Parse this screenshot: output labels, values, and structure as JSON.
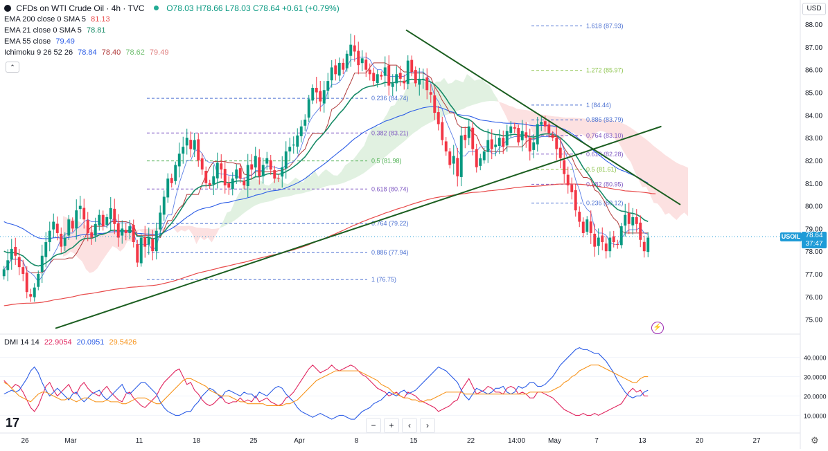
{
  "header": {
    "symbol": "CFDs on WTI Crude Oil · 4h · TVC",
    "ohlc": "O78.03 H78.66 L78.03 C78.64 +0.61 (+0.79%)"
  },
  "indicators": [
    {
      "label": "EMA 200 close 0 SMA 5",
      "value": "81.13",
      "color": "#e84a4a"
    },
    {
      "label": "EMA 21 close 0 SMA 5",
      "value": "78.81",
      "color": "#178a66"
    },
    {
      "label": "EMA 55 close",
      "value": "79.49",
      "color": "#2b5ce6"
    },
    {
      "label": "Ichimoku 9 26 52 26",
      "values": [
        "78.84",
        "78.40",
        "78.62",
        "79.49"
      ],
      "colors": [
        "#2b5ce6",
        "#b03a3a",
        "#6fbf6f",
        "#e08080"
      ]
    }
  ],
  "collapse_label": "⌃",
  "currency": "USD",
  "last_price": {
    "symbol": "USOIL",
    "price": "78.64",
    "countdown": "37:47"
  },
  "price_axis": {
    "min": 74.5,
    "max": 88.4,
    "ticks": [
      "88.00",
      "87.00",
      "86.00",
      "85.00",
      "84.00",
      "83.00",
      "82.00",
      "81.00",
      "80.00",
      "79.00",
      "78.00",
      "77.00",
      "76.00",
      "75.00"
    ]
  },
  "dmi": {
    "label": "DMI 14 14",
    "values": [
      "22.9054",
      "20.0951",
      "29.5426"
    ],
    "colors": [
      "#e0245e",
      "#2b5ce6",
      "#f7931a"
    ],
    "axis_ticks": [
      "40.0000",
      "30.0000",
      "20.0000",
      "10.0000"
    ]
  },
  "time_axis": [
    {
      "label": "26",
      "bar": 6
    },
    {
      "label": "Mar",
      "bar": 18
    },
    {
      "label": "11",
      "bar": 36
    },
    {
      "label": "18",
      "bar": 51
    },
    {
      "label": "25",
      "bar": 66
    },
    {
      "label": "Apr",
      "bar": 78
    },
    {
      "label": "8",
      "bar": 93
    },
    {
      "label": "15",
      "bar": 108
    },
    {
      "label": "22",
      "bar": 123
    },
    {
      "label": "14:00",
      "bar": 135
    },
    {
      "label": "May",
      "bar": 145
    },
    {
      "label": "7",
      "bar": 156
    },
    {
      "label": "13",
      "bar": 168
    },
    {
      "label": "20",
      "bar": 183
    },
    {
      "label": "27",
      "bar": 198
    }
  ],
  "fib_set_1": {
    "color": "#4a6fd1",
    "levels": [
      {
        "label": "0.236 (84.74)",
        "price": 84.74
      },
      {
        "label": "0.382 (83.21)",
        "price": 83.21
      },
      {
        "label": "0.5 (81.98)",
        "price": 81.98
      },
      {
        "label": "0.618 (80.74)",
        "price": 80.74
      },
      {
        "label": "0.764 (79.22)",
        "price": 79.22
      },
      {
        "label": "0.886 (77.94)",
        "price": 77.94
      },
      {
        "label": "1 (76.75)",
        "price": 76.75
      }
    ]
  },
  "fib_set_2": {
    "levels": [
      {
        "label": "1.618 (87.93)",
        "price": 87.93
      },
      {
        "label": "1.272 (85.97)",
        "price": 85.97
      },
      {
        "label": "1 (84.44)",
        "price": 84.44
      },
      {
        "label": "0.886 (83.79)",
        "price": 83.79
      },
      {
        "label": "0.764 (83.10)",
        "price": 83.1
      },
      {
        "label": "0.618 (82.28)",
        "price": 82.28
      },
      {
        "label": "0.5 (81.61)",
        "price": 81.61
      },
      {
        "label": "0.382 (80.95)",
        "price": 80.95
      },
      {
        "label": "0.236 (80.12)",
        "price": 80.12
      }
    ]
  },
  "trendlines": [
    {
      "name": "resistance",
      "from": {
        "bar": 106,
        "price": 87.75
      },
      "to": {
        "bar": 178,
        "price": 80.05
      }
    },
    {
      "name": "support",
      "from": {
        "bar": 14,
        "price": 74.6
      },
      "to": {
        "bar": 173,
        "price": 83.5
      }
    }
  ],
  "chart_data": {
    "type": "candlestick",
    "title": "CFDs on WTI Crude Oil · 4h · TVC",
    "ylabel": "USD",
    "ylim": [
      74.5,
      88.4
    ],
    "close": [
      77.2,
      77.6,
      78.1,
      77.8,
      77.3,
      77.0,
      76.2,
      76.0,
      76.4,
      77.0,
      77.8,
      78.4,
      78.9,
      79.3,
      78.8,
      78.2,
      78.6,
      79.4,
      79.0,
      79.8,
      80.0,
      79.4,
      78.8,
      78.6,
      79.2,
      79.6,
      79.1,
      79.5,
      79.9,
      79.2,
      78.6,
      79.0,
      78.8,
      79.1,
      78.4,
      77.5,
      78.6,
      78.2,
      78.6,
      78.0,
      78.9,
      79.7,
      80.4,
      81.2,
      81.0,
      81.8,
      82.3,
      82.6,
      83.0,
      82.5,
      82.9,
      82.0,
      81.6,
      81.0,
      80.9,
      81.3,
      81.9,
      81.6,
      80.9,
      80.8,
      81.2,
      81.6,
      81.2,
      80.9,
      81.8,
      81.6,
      82.2,
      81.3,
      81.8,
      82.1,
      81.6,
      81.2,
      81.2,
      81.7,
      82.4,
      82.6,
      82.7,
      83.1,
      83.5,
      83.8,
      84.7,
      85.2,
      85.0,
      84.6,
      85.1,
      85.5,
      86.1,
      85.8,
      86.3,
      86.0,
      86.7,
      87.1,
      86.8,
      86.2,
      86.5,
      86.0,
      85.8,
      85.5,
      85.8,
      85.7,
      86.1,
      85.3,
      85.4,
      85.8,
      85.6,
      85.4,
      86.4,
      85.9,
      85.4,
      85.6,
      85.6,
      85.1,
      84.9,
      84.1,
      83.6,
      82.9,
      82.4,
      81.8,
      82.2,
      81.3,
      83.1,
      82.9,
      83.5,
      82.5,
      81.7,
      82.1,
      82.4,
      82.9,
      82.5,
      82.7,
      83.0,
      82.6,
      83.3,
      83.5,
      83.4,
      82.8,
      83.3,
      83.0,
      82.4,
      82.8,
      83.6,
      83.7,
      83.5,
      83.2,
      83.0,
      82.5,
      82.1,
      81.4,
      80.9,
      80.6,
      79.8,
      79.3,
      78.8,
      79.4,
      78.8,
      78.2,
      78.6,
      78.4,
      78.0,
      78.6,
      78.4,
      78.3,
      79.1,
      79.6,
      79.2,
      79.5,
      79.2,
      78.5,
      78.0,
      78.6
    ],
    "ema21": [
      78.0,
      77.93,
      77.94,
      77.93,
      77.87,
      77.79,
      77.64,
      77.49,
      77.39,
      77.35,
      77.39,
      77.48,
      77.61,
      77.76,
      77.86,
      77.89,
      77.95,
      78.08,
      78.16,
      78.31,
      78.47,
      78.55,
      78.57,
      78.57,
      78.63,
      78.72,
      78.75,
      78.81,
      78.91,
      78.93,
      78.9,
      78.91,
      78.9,
      78.92,
      78.873,
      78.66,
      78.65,
      78.609,
      78.61,
      78.55,
      78.58,
      78.69,
      78.85,
      79.06,
      79.24,
      79.47,
      79.73,
      79.99,
      80.26,
      80.46,
      80.68,
      80.8,
      80.88,
      80.89,
      80.89,
      80.93,
      81.02,
      81.07,
      81.05,
      81.02,
      81.04,
      81.09,
      81.1,
      81.08,
      81.14,
      81.19,
      81.28,
      81.28,
      81.33,
      81.4,
      81.43,
      81.41,
      81.39,
      81.42,
      81.51,
      81.6,
      81.72,
      81.85,
      82.0,
      82.16,
      82.39,
      82.64,
      82.87,
      83.03,
      83.22,
      83.42,
      83.66,
      83.85,
      84.07,
      84.24,
      84.46,
      84.7,
      84.89,
      85.0,
      85.14,
      85.22,
      85.27,
      85.29,
      85.34,
      85.37,
      85.44,
      85.42,
      85.42,
      85.46,
      85.47,
      85.46,
      85.55,
      85.58,
      85.56,
      85.56,
      85.56,
      85.52,
      85.46,
      85.34,
      85.18,
      84.97,
      84.735,
      84.47,
      84.26,
      83.99,
      83.91,
      83.84,
      83.81,
      83.69,
      83.51,
      83.38,
      83.29,
      83.25,
      83.18,
      83.14,
      83.13,
      83.08,
      83.1,
      83.13,
      83.15,
      83.12,
      83.12,
      83.11,
      83.05,
      83.03,
      83.08,
      83.14,
      83.17,
      83.17,
      83.15,
      83.09,
      83.0,
      82.85,
      82.68,
      82.49,
      82.24,
      81.97,
      81.68,
      81.47,
      81.23,
      80.96,
      80.74,
      80.53,
      80.3,
      80.15,
      79.99,
      79.84,
      79.77,
      79.75,
      79.69,
      79.67,
      79.62,
      79.52,
      79.38,
      79.31
    ],
    "ema55": [
      79.3,
      79.23,
      79.19,
      79.14,
      79.07,
      78.99,
      78.88,
      78.77,
      78.67,
      78.59,
      78.56,
      78.55,
      78.56,
      78.59,
      78.6,
      78.58,
      78.58,
      78.61,
      78.63,
      78.67,
      78.71,
      78.73,
      78.73,
      78.73,
      78.75,
      78.78,
      78.79,
      78.81,
      78.85,
      78.86,
      78.86,
      78.86,
      78.86,
      78.87,
      78.85,
      78.79,
      78.78,
      78.76,
      78.76,
      78.73,
      78.74,
      78.77,
      78.83,
      78.92,
      79.0,
      79.11,
      79.23,
      79.37,
      79.5,
      79.61,
      79.73,
      79.81,
      79.87,
      79.91,
      79.94,
      79.99,
      80.06,
      80.11,
      80.14,
      80.16,
      80.2,
      80.25,
      80.28,
      80.31,
      80.36,
      80.4,
      80.47,
      80.5,
      80.55,
      80.61,
      80.65,
      80.67,
      80.69,
      80.73,
      80.79,
      80.86,
      80.93,
      81.01,
      81.1,
      81.2,
      81.33,
      81.47,
      81.6,
      81.72,
      81.84,
      81.97,
      82.12,
      82.25,
      82.39,
      82.52,
      82.66,
      82.82,
      82.96,
      83.07,
      83.2,
      83.3,
      83.39,
      83.47,
      83.56,
      83.64,
      83.73,
      83.78,
      83.84,
      83.91,
      83.97,
      84.02,
      84.11,
      84.17,
      84.22,
      84.27,
      84.32,
      84.35,
      84.37,
      84.37,
      84.35,
      84.3,
      84.24,
      84.16,
      84.12,
      84.03,
      84.0,
      83.98,
      83.96,
      83.91,
      83.84,
      83.79,
      83.76,
      83.74,
      83.71,
      83.69,
      83.68,
      83.65,
      83.64,
      83.64,
      83.64,
      83.62,
      83.61,
      83.59,
      83.55,
      83.53,
      83.53,
      83.54,
      83.54,
      83.53,
      83.52,
      83.48,
      83.44,
      83.37,
      83.29,
      83.19,
      83.07,
      82.94,
      82.8,
      82.68,
      82.54,
      82.39,
      82.26,
      82.13,
      81.99,
      81.88,
      81.76,
      81.65,
      81.57,
      81.51,
      81.43,
      81.36,
      81.29,
      81.2,
      81.09,
      81.01
    ],
    "ema200": [
      75.6,
      75.62,
      75.65,
      75.67,
      75.69,
      75.7,
      75.71,
      75.71,
      75.72,
      75.73,
      75.75,
      75.78,
      75.81,
      75.85,
      75.88,
      75.9,
      75.93,
      75.96,
      75.99,
      76.03,
      76.07,
      76.1,
      76.12,
      76.14,
      76.17,
      76.2,
      76.23,
      76.26,
      76.29,
      76.32,
      76.34,
      76.36,
      76.38,
      76.41,
      76.42,
      76.43,
      76.45,
      76.46,
      76.48,
      76.49,
      76.51,
      76.54,
      76.58,
      76.62,
      76.66,
      76.71,
      76.76,
      76.82,
      76.88,
      76.93,
      76.99,
      77.04,
      77.08,
      77.12,
      77.16,
      77.2,
      77.24,
      77.29,
      77.32,
      77.36,
      77.4,
      77.44,
      77.48,
      77.51,
      77.56,
      77.6,
      77.65,
      77.69,
      77.73,
      77.77,
      77.81,
      77.85,
      77.88,
      77.92,
      77.97,
      78.02,
      78.06,
      78.12,
      78.17,
      78.23,
      78.29,
      78.36,
      78.43,
      78.49,
      78.56,
      78.63,
      78.7,
      78.77,
      78.85,
      78.92,
      79.0,
      79.08,
      79.15,
      79.22,
      79.3,
      79.36,
      79.43,
      79.49,
      79.55,
      79.61,
      79.68,
      79.73,
      79.79,
      79.85,
      79.9,
      79.95,
      80.01,
      80.07,
      80.12,
      80.17,
      80.22,
      80.27,
      80.31,
      80.35,
      80.38,
      80.41,
      80.43,
      80.45,
      80.48,
      80.49,
      80.52,
      80.54,
      80.57,
      80.59,
      80.6,
      80.61,
      80.63,
      80.66,
      80.67,
      80.69,
      80.71,
      80.73,
      80.75,
      80.77,
      80.8,
      80.81,
      80.83,
      80.85,
      80.86,
      80.86,
      80.87,
      80.88,
      80.9,
      80.92,
      80.93,
      80.95,
      80.96,
      80.96,
      80.97,
      80.96,
      80.96,
      80.95,
      80.94,
      80.92,
      80.89,
      80.88,
      80.85,
      80.82,
      80.8,
      80.77,
      80.74,
      80.72,
      80.69,
      80.66,
      80.65,
      80.64,
      80.62,
      80.61,
      80.59,
      80.57,
      80.54,
      80.53
    ],
    "dmi_plus": [
      28,
      26,
      24,
      26,
      25,
      22,
      18,
      14,
      12,
      15,
      20,
      25,
      27,
      23,
      20,
      22,
      24,
      26,
      22,
      21,
      25,
      27,
      24,
      22,
      21,
      20,
      23,
      25,
      22,
      20,
      18,
      17,
      21,
      22,
      19,
      17,
      15,
      14,
      16,
      18,
      20,
      24,
      27,
      29,
      31,
      33,
      34,
      30,
      26,
      27,
      23,
      21,
      18,
      16,
      15,
      16,
      18,
      20,
      17,
      16,
      17,
      17,
      19,
      17,
      18,
      17,
      20,
      17,
      18,
      19,
      17,
      16,
      15,
      16,
      19,
      20,
      22,
      25,
      28,
      31,
      34,
      36,
      34,
      32,
      33,
      34,
      36,
      34,
      33,
      34,
      35,
      36,
      35,
      33,
      31,
      30,
      28,
      26,
      24,
      23,
      22,
      20,
      21,
      22,
      20,
      19,
      22,
      21,
      20,
      18,
      17,
      16,
      15,
      14,
      12,
      13,
      14,
      15,
      17,
      18,
      23,
      26,
      29,
      25,
      21,
      22,
      23,
      25,
      24,
      22,
      22,
      21,
      24,
      25,
      24,
      21,
      22,
      21,
      19,
      19,
      22,
      22,
      21,
      20,
      19,
      17,
      15,
      13,
      12,
      11,
      10,
      10,
      11,
      10,
      10,
      11,
      10,
      11,
      12,
      13,
      14,
      15,
      16,
      19,
      22,
      24,
      22,
      23,
      20,
      20
    ],
    "dmi_minus": [
      21,
      22,
      23,
      22,
      23,
      26,
      29,
      33,
      35,
      32,
      27,
      23,
      20,
      22,
      24,
      22,
      20,
      18,
      21,
      22,
      19,
      17,
      19,
      21,
      22,
      23,
      20,
      18,
      20,
      22,
      24,
      26,
      22,
      21,
      23,
      25,
      27,
      27,
      25,
      23,
      21,
      17,
      14,
      12,
      11,
      10,
      10,
      11,
      12,
      12,
      15,
      17,
      20,
      22,
      24,
      23,
      21,
      19,
      22,
      23,
      22,
      21,
      20,
      22,
      21,
      21,
      19,
      22,
      21,
      20,
      22,
      24,
      25,
      24,
      21,
      19,
      17,
      14,
      12,
      11,
      10,
      9,
      10,
      11,
      10,
      9,
      8,
      9,
      10,
      10,
      9,
      8,
      8,
      10,
      12,
      13,
      14,
      16,
      17,
      18,
      20,
      22,
      21,
      20,
      22,
      23,
      21,
      22,
      23,
      25,
      27,
      29,
      31,
      33,
      35,
      34,
      33,
      31,
      29,
      27,
      23,
      20,
      18,
      21,
      24,
      23,
      22,
      21,
      22,
      24,
      24,
      25,
      22,
      21,
      22,
      25,
      24,
      25,
      27,
      27,
      25,
      25,
      26,
      28,
      30,
      33,
      36,
      38,
      40,
      42,
      44,
      45,
      44,
      44,
      43,
      42,
      42,
      40,
      38,
      35,
      32,
      28,
      25,
      22,
      20,
      19,
      20,
      20,
      22,
      23
    ],
    "adx": [
      27,
      26,
      24,
      22,
      20,
      19,
      18,
      17,
      19,
      21,
      22,
      22,
      21,
      20,
      19,
      18,
      18,
      19,
      18,
      17,
      18,
      19,
      19,
      18,
      17,
      17,
      17,
      18,
      17,
      17,
      17,
      16,
      16,
      17,
      18,
      19,
      19,
      19,
      18,
      17,
      16,
      16,
      18,
      20,
      22,
      24,
      26,
      28,
      29,
      29,
      28,
      27,
      26,
      25,
      23,
      22,
      21,
      20,
      20,
      20,
      19,
      18,
      17,
      17,
      16,
      16,
      16,
      16,
      16,
      15,
      15,
      15,
      15,
      15,
      16,
      16,
      17,
      18,
      20,
      22,
      24,
      26,
      28,
      29,
      30,
      31,
      32,
      33,
      33,
      33,
      33,
      33,
      33,
      33,
      32,
      31,
      30,
      29,
      28,
      26,
      25,
      24,
      22,
      21,
      20,
      19,
      19,
      18,
      18,
      17,
      17,
      18,
      18,
      19,
      20,
      21,
      22,
      22,
      22,
      22,
      22,
      21,
      21,
      21,
      21,
      21,
      21,
      21,
      21,
      21,
      21,
      21,
      21,
      21,
      21,
      21,
      21,
      21,
      22,
      22,
      22,
      22,
      22,
      22,
      23,
      24,
      25,
      27,
      28,
      30,
      31,
      33,
      34,
      35,
      36,
      36,
      36,
      35,
      34,
      33,
      32,
      31,
      30,
      29,
      28,
      27,
      27,
      29,
      30,
      30
    ]
  }
}
